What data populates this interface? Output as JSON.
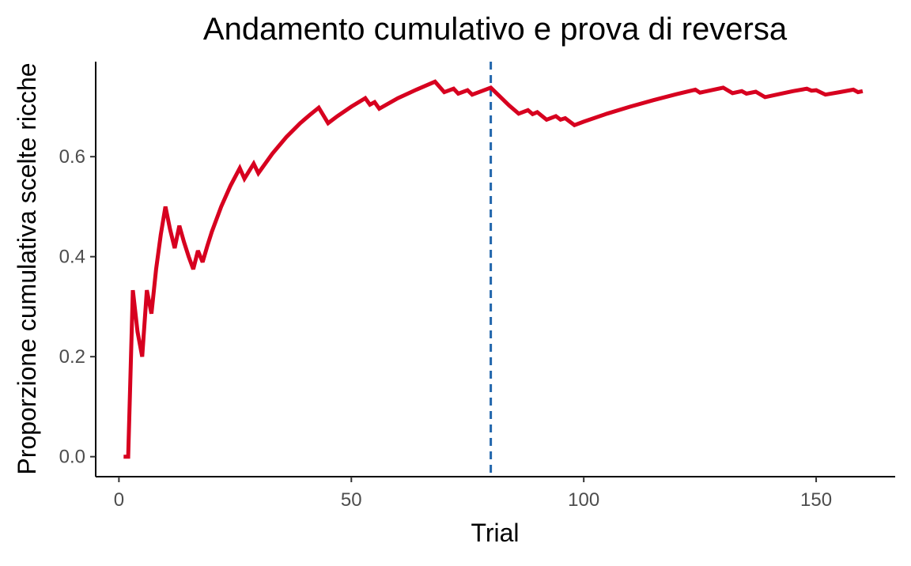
{
  "chart_data": {
    "type": "line",
    "title": "Andamento cumulativo e prova di reversa",
    "xlabel": "Trial",
    "ylabel": "Proporzione cumulativa scelte ricche",
    "xlim": [
      -5,
      167
    ],
    "ylim": [
      -0.04,
      0.79
    ],
    "xticks": [
      0,
      50,
      100,
      150
    ],
    "yticks": [
      0.0,
      0.2,
      0.4,
      0.6
    ],
    "xtick_labels": [
      "0",
      "50",
      "100",
      "150"
    ],
    "ytick_labels": [
      "0.0",
      "0.2",
      "0.4",
      "0.6"
    ],
    "grid": false,
    "legend": "none",
    "reversal_line": {
      "x": 80,
      "style": "dashed",
      "color": "#2166ac"
    },
    "series": [
      {
        "color": "#d7001f",
        "x": [
          1,
          2,
          3,
          4,
          5,
          6,
          7,
          8,
          9,
          10,
          11,
          12,
          13,
          14,
          15,
          16,
          17,
          18,
          19,
          20,
          22,
          24,
          26,
          27,
          29,
          30,
          33,
          36,
          39,
          41,
          43,
          45,
          47,
          50,
          53,
          54,
          55,
          56,
          60,
          64,
          68,
          70,
          72,
          73,
          75,
          76,
          78,
          80,
          82,
          84,
          86,
          88,
          89,
          90,
          92,
          94,
          95,
          96,
          97,
          98,
          100,
          105,
          110,
          115,
          120,
          124,
          125,
          127,
          130,
          132,
          134,
          135,
          137,
          139,
          142,
          145,
          148,
          149,
          150,
          152,
          155,
          158,
          159,
          160
        ],
        "y": [
          0.0,
          0.0,
          0.333,
          0.25,
          0.2,
          0.333,
          0.286,
          0.375,
          0.444,
          0.5,
          0.455,
          0.417,
          0.462,
          0.429,
          0.4,
          0.375,
          0.412,
          0.389,
          0.421,
          0.45,
          0.5,
          0.542,
          0.577,
          0.556,
          0.586,
          0.567,
          0.606,
          0.639,
          0.667,
          0.683,
          0.698,
          0.667,
          0.681,
          0.7,
          0.717,
          0.704,
          0.709,
          0.696,
          0.717,
          0.734,
          0.75,
          0.729,
          0.736,
          0.726,
          0.733,
          0.724,
          0.731,
          0.738,
          0.72,
          0.702,
          0.686,
          0.693,
          0.685,
          0.689,
          0.674,
          0.681,
          0.674,
          0.677,
          0.67,
          0.663,
          0.67,
          0.686,
          0.7,
          0.713,
          0.725,
          0.734,
          0.728,
          0.732,
          0.738,
          0.727,
          0.731,
          0.726,
          0.73,
          0.719,
          0.725,
          0.731,
          0.736,
          0.732,
          0.733,
          0.724,
          0.729,
          0.734,
          0.729,
          0.731
        ]
      }
    ]
  }
}
